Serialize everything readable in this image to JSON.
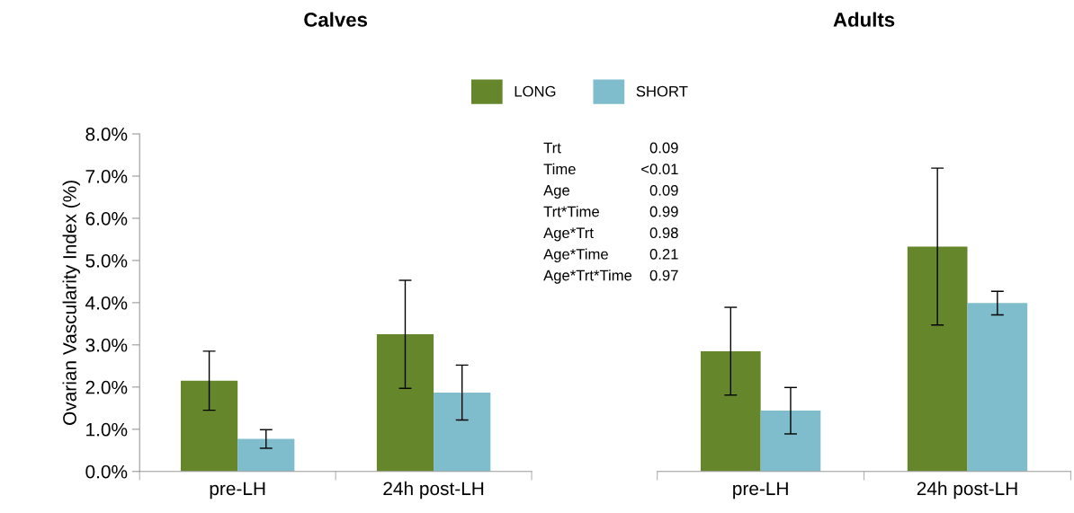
{
  "chart_data": [
    {
      "type": "bar",
      "title": "Calves",
      "ylabel": "Ovarian Vascularity Index (%)",
      "categories": [
        "pre-LH",
        "24h post-LH"
      ],
      "series": [
        {
          "name": "LONG",
          "color": "#66862c",
          "values": [
            2.15,
            3.25
          ],
          "errors": [
            0.7,
            1.28
          ]
        },
        {
          "name": "SHORT",
          "color": "#7fbccc",
          "values": [
            0.77,
            1.87
          ],
          "errors": [
            0.22,
            0.65
          ]
        }
      ],
      "ylim": [
        0,
        8
      ],
      "yticks": [
        {
          "value": 0,
          "label": "0.0%"
        },
        {
          "value": 1,
          "label": "1.0%"
        },
        {
          "value": 2,
          "label": "2.0%"
        },
        {
          "value": 3,
          "label": "3.0%"
        },
        {
          "value": 4,
          "label": "4.0%"
        },
        {
          "value": 5,
          "label": "5.0%"
        },
        {
          "value": 6,
          "label": "6.0%"
        },
        {
          "value": 7,
          "label": "7.0%"
        },
        {
          "value": 8,
          "label": "8.0%"
        }
      ],
      "legend": "top",
      "grid": false,
      "annotations": [
        "Trt",
        "0.09",
        "Time",
        "<0.01",
        "Age",
        "0.09",
        "Trt*Time",
        "0.99",
        "Age*Trt",
        "0.98",
        "Age*Time",
        "0.21",
        "Age*Trt*Time",
        "0.97"
      ]
    },
    {
      "type": "bar",
      "title": "Adults",
      "categories": [
        "pre-LH",
        "24h post-LH"
      ],
      "series": [
        {
          "name": "LONG",
          "color": "#66862c",
          "values": [
            2.85,
            5.33
          ],
          "errors": [
            1.04,
            1.86
          ]
        },
        {
          "name": "SHORT",
          "color": "#7fbccc",
          "values": [
            1.44,
            3.99
          ],
          "errors": [
            0.55,
            0.28
          ]
        }
      ],
      "ylim": [
        0,
        8
      ],
      "tick_labels": "x",
      "grid": false
    }
  ]
}
